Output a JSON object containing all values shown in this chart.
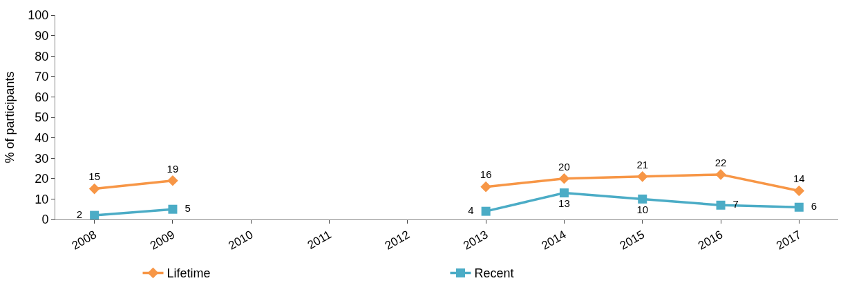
{
  "chart_data": {
    "type": "line",
    "ylabel": "% of participants",
    "categories": [
      "2008",
      "2009",
      "2010",
      "2011",
      "2012",
      "2013",
      "2014",
      "2015",
      "2016",
      "2017"
    ],
    "series": [
      {
        "name": "Lifetime",
        "color": "#f79646",
        "marker": "diamond",
        "values": [
          15,
          19,
          null,
          null,
          null,
          16,
          20,
          21,
          22,
          14
        ]
      },
      {
        "name": "Recent",
        "color": "#4bacc6",
        "marker": "square",
        "values": [
          2,
          5,
          null,
          null,
          null,
          4,
          13,
          10,
          7,
          6
        ]
      }
    ],
    "ylim": [
      0,
      100
    ],
    "yticks": [
      0,
      10,
      20,
      30,
      40,
      50,
      60,
      70,
      80,
      90,
      100
    ],
    "legend": "bottom",
    "data_labels": true,
    "line_style": "solid"
  }
}
